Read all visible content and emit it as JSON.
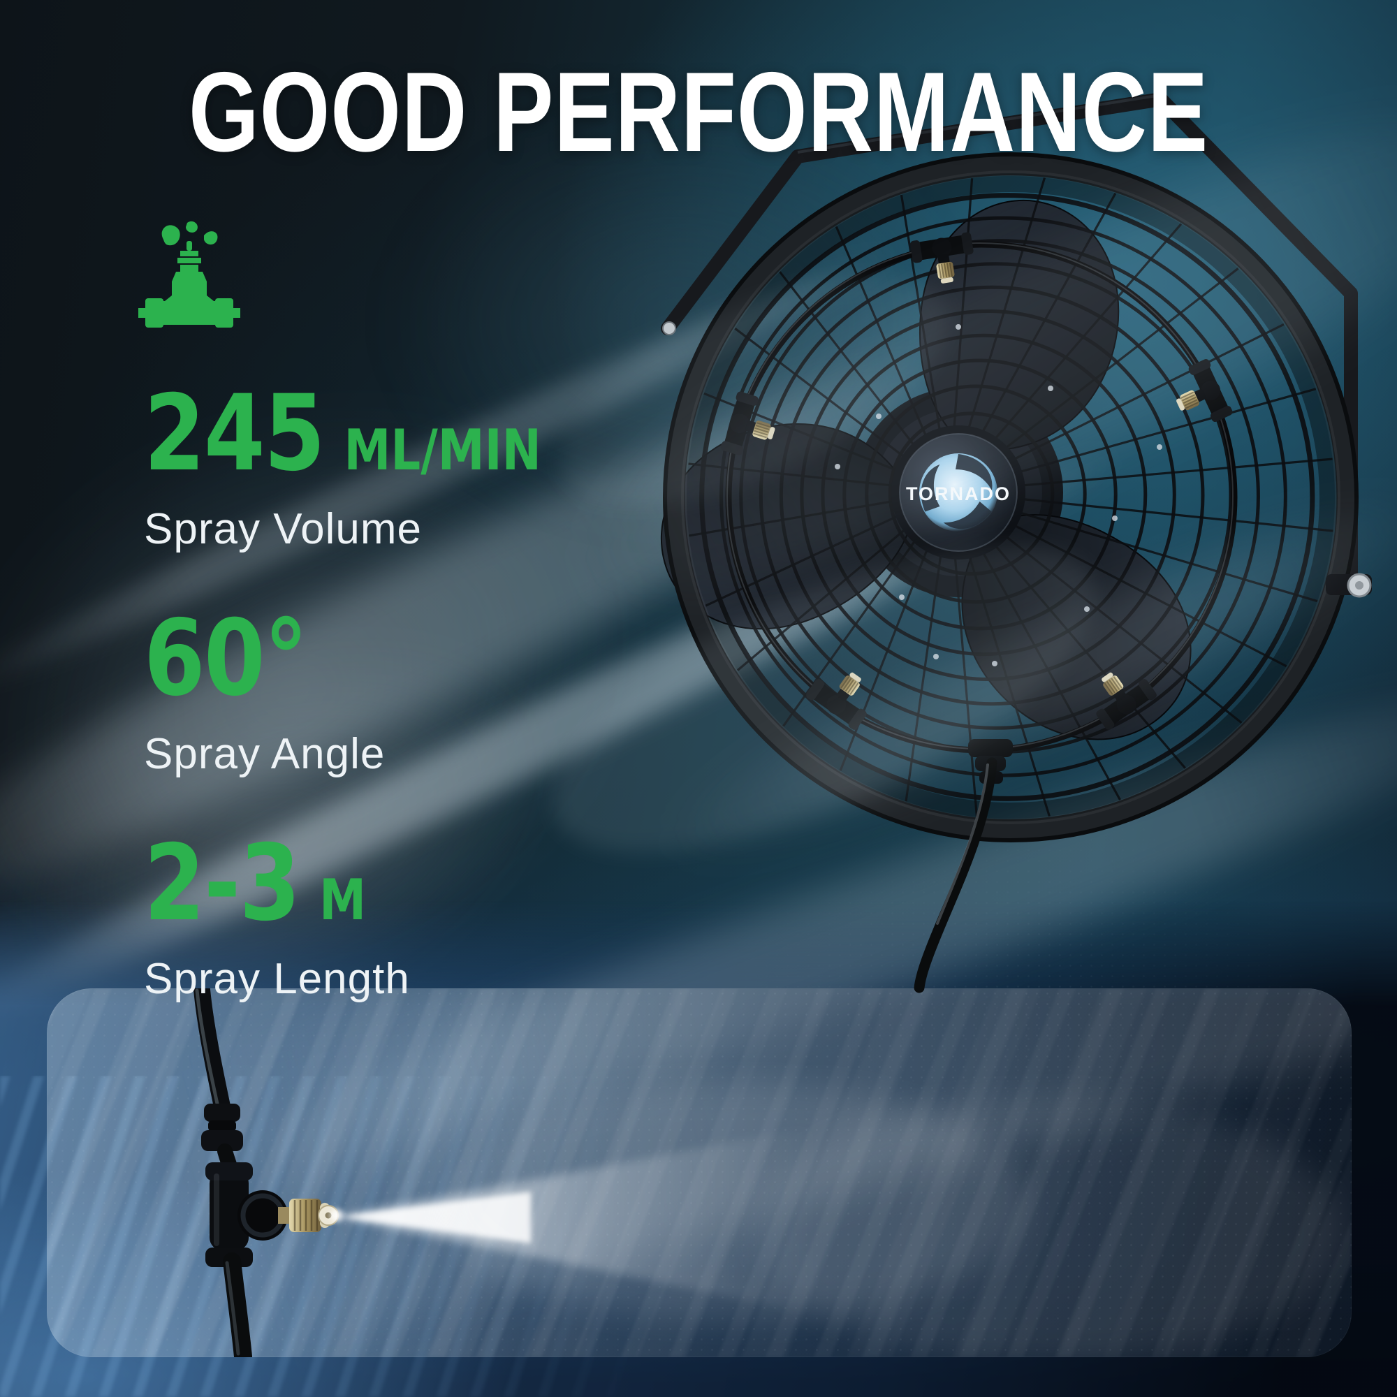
{
  "title": "GOOD PERFORMANCE",
  "colors": {
    "accent_green": "#2cb24e",
    "title_white": "#ffffff",
    "label_white": "#eef3f6",
    "background_teal": "#15323f",
    "bottom_blue": "#2d5480"
  },
  "features": [
    {
      "value": "245",
      "unit": "ML/MIN",
      "label": "Spray Volume"
    },
    {
      "value": "60°",
      "unit": "",
      "label": "Spray Angle"
    },
    {
      "value": "2-3",
      "unit": "M",
      "label": "Spray Length"
    }
  ],
  "fan": {
    "hub_logo": "TORNADO"
  },
  "icons": {
    "feature": "water-valve-spray-icon",
    "hub": "tornado-swirl-icon"
  }
}
